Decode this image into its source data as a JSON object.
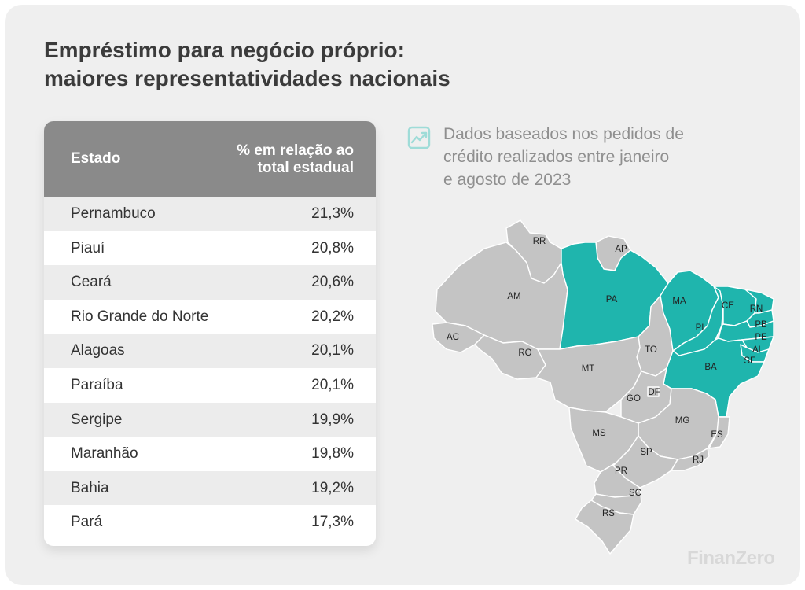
{
  "title": {
    "line1": "Empréstimo para negócio próprio:",
    "line2": "maiores representatividades nacionais"
  },
  "table": {
    "header_state": "Estado",
    "header_pct_line1": "% em relação ao",
    "header_pct_line2": "total estadual",
    "rows": [
      {
        "state": "Pernambuco",
        "pct": "21,3%"
      },
      {
        "state": "Piauí",
        "pct": "20,8%"
      },
      {
        "state": "Ceará",
        "pct": "20,6%"
      },
      {
        "state": "Rio Grande do Norte",
        "pct": "20,2%"
      },
      {
        "state": "Alagoas",
        "pct": "20,1%"
      },
      {
        "state": "Paraíba",
        "pct": "20,1%"
      },
      {
        "state": "Sergipe",
        "pct": "19,9%"
      },
      {
        "state": "Maranhão",
        "pct": "19,8%"
      },
      {
        "state": "Bahia",
        "pct": "19,2%"
      },
      {
        "state": "Pará",
        "pct": "17,3%"
      }
    ]
  },
  "note": {
    "icon": "line-chart-icon",
    "line1": "Dados baseados nos pedidos de",
    "line2": "crédito realizados entre janeiro",
    "line3": "e agosto de 2023"
  },
  "map": {
    "highlight_color": "#1fb5ad",
    "base_color": "#c4c4c4",
    "labels": {
      "RR": "RR",
      "AP": "AP",
      "AM": "AM",
      "PA": "PA",
      "MA": "MA",
      "CE": "CE",
      "RN": "RN",
      "PB": "PB",
      "PE": "PE",
      "AL": "AL",
      "SE": "SE",
      "PI": "PI",
      "AC": "AC",
      "RO": "RO",
      "TO": "TO",
      "MT": "MT",
      "BA": "BA",
      "DF": "DF",
      "GO": "GO",
      "MG": "MG",
      "ES": "ES",
      "MS": "MS",
      "SP": "SP",
      "RJ": "RJ",
      "PR": "PR",
      "SC": "SC",
      "RS": "RS"
    },
    "highlighted": [
      "PA",
      "MA",
      "PI",
      "CE",
      "RN",
      "PB",
      "PE",
      "AL",
      "SE",
      "BA"
    ]
  },
  "brand": "FinanZero"
}
